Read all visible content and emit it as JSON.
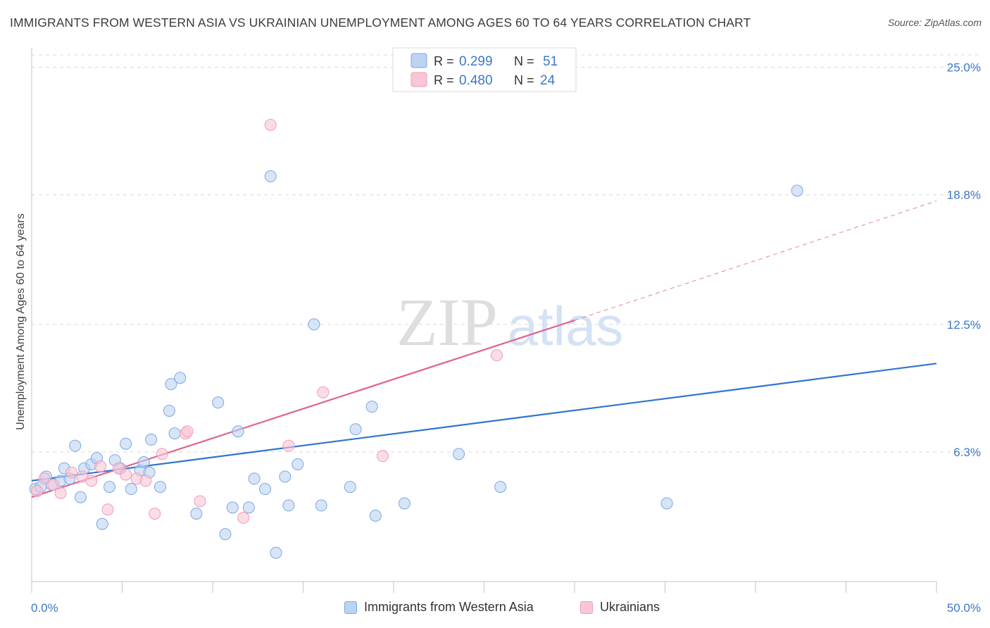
{
  "title": "IMMIGRANTS FROM WESTERN ASIA VS UKRAINIAN UNEMPLOYMENT AMONG AGES 60 TO 64 YEARS CORRELATION CHART",
  "source": "Source: ZipAtlas.com",
  "watermark": {
    "zip": "ZIP",
    "atlas": "atlas"
  },
  "legend_top": [
    {
      "r_label": "R =",
      "r_value": "0.299",
      "n_label": "N =",
      "n_value": "51",
      "color": "#7aa7e6"
    },
    {
      "r_label": "R =",
      "r_value": "0.480",
      "n_label": "N =",
      "n_value": "24",
      "color": "#f29bb8"
    }
  ],
  "colors": {
    "blue_fill": "#bcd3f2",
    "blue_stroke": "#7aa7e6",
    "blue_line": "#2f74d0",
    "pink_fill": "#f8c6d6",
    "pink_stroke": "#f29bb8",
    "pink_line": "#e0628f",
    "value_text": "#3b78c9",
    "grid": "#d9d9d9"
  },
  "chart_data": {
    "type": "scatter",
    "ylabel": "Unemployment Among Ages 60 to 64 years",
    "xlim": [
      0,
      50
    ],
    "ylim": [
      0,
      25.6
    ],
    "x_tick_labels": [
      "0.0%",
      "50.0%"
    ],
    "y_ticks": [
      6.3,
      12.5,
      18.8,
      25.0
    ],
    "y_tick_labels": [
      "6.3%",
      "12.5%",
      "18.8%",
      "25.0%"
    ],
    "grid": true,
    "legend_position": "bottom",
    "series": [
      {
        "name": "Immigrants from Western Asia",
        "color": "#7aa7e6",
        "points": [
          [
            0.2,
            4.5
          ],
          [
            0.5,
            4.6
          ],
          [
            0.8,
            5.1
          ],
          [
            1.1,
            4.7
          ],
          [
            1.6,
            4.9
          ],
          [
            1.8,
            5.5
          ],
          [
            2.1,
            5.0
          ],
          [
            2.4,
            6.6
          ],
          [
            2.7,
            4.1
          ],
          [
            2.9,
            5.5
          ],
          [
            3.3,
            5.7
          ],
          [
            3.6,
            6.0
          ],
          [
            3.9,
            2.8
          ],
          [
            4.3,
            4.6
          ],
          [
            4.6,
            5.9
          ],
          [
            4.9,
            5.5
          ],
          [
            5.2,
            6.7
          ],
          [
            5.5,
            4.5
          ],
          [
            6.0,
            5.4
          ],
          [
            6.2,
            5.8
          ],
          [
            6.5,
            5.3
          ],
          [
            6.6,
            6.9
          ],
          [
            7.1,
            4.6
          ],
          [
            7.6,
            8.3
          ],
          [
            7.7,
            9.6
          ],
          [
            7.9,
            7.2
          ],
          [
            8.2,
            9.9
          ],
          [
            9.1,
            3.3
          ],
          [
            10.3,
            8.7
          ],
          [
            10.7,
            2.3
          ],
          [
            11.1,
            3.6
          ],
          [
            11.4,
            7.3
          ],
          [
            12.0,
            3.6
          ],
          [
            12.3,
            5.0
          ],
          [
            12.9,
            4.5
          ],
          [
            13.2,
            19.7
          ],
          [
            13.5,
            1.4
          ],
          [
            14.0,
            5.1
          ],
          [
            14.2,
            3.7
          ],
          [
            14.7,
            5.7
          ],
          [
            15.6,
            12.5
          ],
          [
            16.0,
            3.7
          ],
          [
            17.6,
            4.6
          ],
          [
            17.9,
            7.4
          ],
          [
            18.8,
            8.5
          ],
          [
            19.0,
            3.2
          ],
          [
            20.6,
            3.8
          ],
          [
            23.6,
            6.2
          ],
          [
            25.9,
            4.6
          ],
          [
            35.1,
            3.8
          ],
          [
            42.3,
            19.0
          ]
        ]
      },
      {
        "name": "Ukrainians",
        "color": "#f29bb8",
        "points": [
          [
            0.3,
            4.4
          ],
          [
            0.7,
            5.0
          ],
          [
            1.2,
            4.7
          ],
          [
            1.6,
            4.3
          ],
          [
            2.2,
            5.3
          ],
          [
            2.8,
            5.1
          ],
          [
            3.3,
            4.9
          ],
          [
            3.8,
            5.6
          ],
          [
            4.2,
            3.5
          ],
          [
            4.8,
            5.5
          ],
          [
            5.2,
            5.2
          ],
          [
            5.8,
            5.0
          ],
          [
            6.3,
            4.9
          ],
          [
            6.8,
            3.3
          ],
          [
            7.2,
            6.2
          ],
          [
            8.5,
            7.2
          ],
          [
            8.6,
            7.3
          ],
          [
            9.3,
            3.9
          ],
          [
            11.7,
            3.1
          ],
          [
            13.2,
            22.2
          ],
          [
            14.2,
            6.6
          ],
          [
            16.1,
            9.2
          ],
          [
            19.4,
            6.1
          ],
          [
            25.7,
            11.0
          ]
        ]
      }
    ],
    "trendlines": [
      {
        "series": "Immigrants from Western Asia",
        "x": [
          0,
          50
        ],
        "y": [
          4.9,
          10.6
        ]
      },
      {
        "series": "Ukrainians",
        "x": [
          0,
          30
        ],
        "y": [
          4.1,
          12.7
        ]
      },
      {
        "series": "Ukrainians",
        "style": "dashed",
        "x": [
          30,
          50
        ],
        "y": [
          12.7,
          18.5
        ]
      }
    ]
  }
}
